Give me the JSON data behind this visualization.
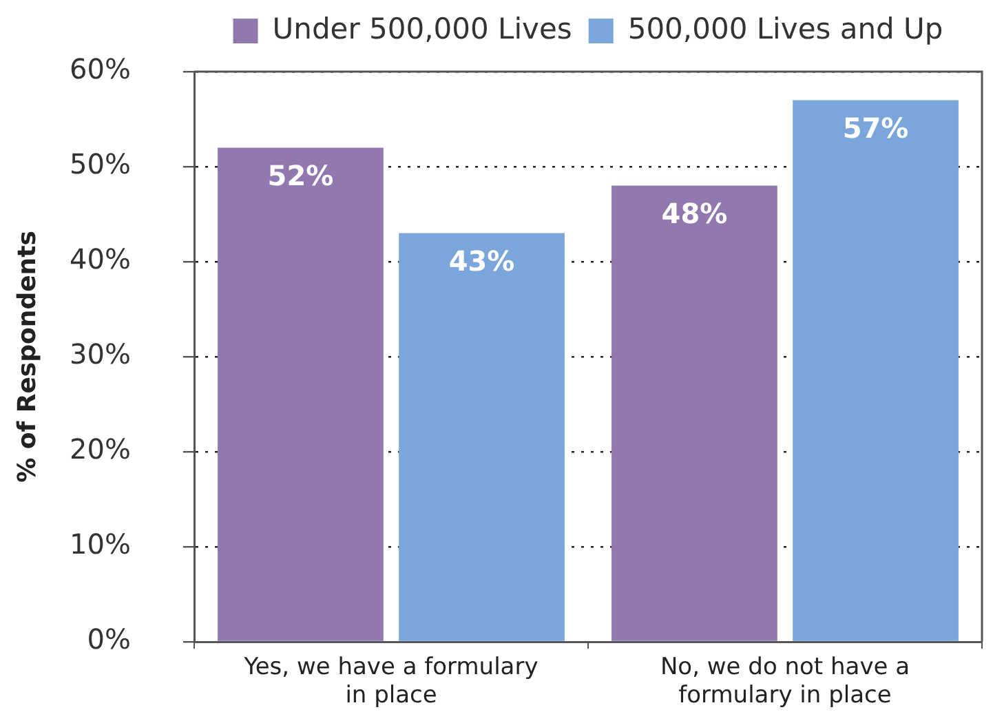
{
  "chart_data": {
    "type": "bar",
    "categories": [
      "Yes, we have a formulary in place",
      "No, we do not have a formulary in place"
    ],
    "series": [
      {
        "name": "Under 500,000 Lives",
        "color": "#9179b0",
        "values": [
          52,
          48
        ],
        "value_labels": [
          "52%",
          "48%"
        ]
      },
      {
        "name": "500,000 Lives and Up",
        "color": "#7ba6dc",
        "values": [
          43,
          57
        ],
        "value_labels": [
          "43%",
          "57%"
        ]
      }
    ],
    "ylabel": "% of Respondents",
    "ylim": [
      0,
      60
    ],
    "yticks": [
      {
        "value": 0,
        "label": "0%"
      },
      {
        "value": 10,
        "label": "10%"
      },
      {
        "value": 20,
        "label": "20%"
      },
      {
        "value": 30,
        "label": "30%"
      },
      {
        "value": 40,
        "label": "40%"
      },
      {
        "value": 50,
        "label": "50%"
      },
      {
        "value": 60,
        "label": "60%"
      }
    ],
    "grid": "y",
    "legend": "top"
  }
}
